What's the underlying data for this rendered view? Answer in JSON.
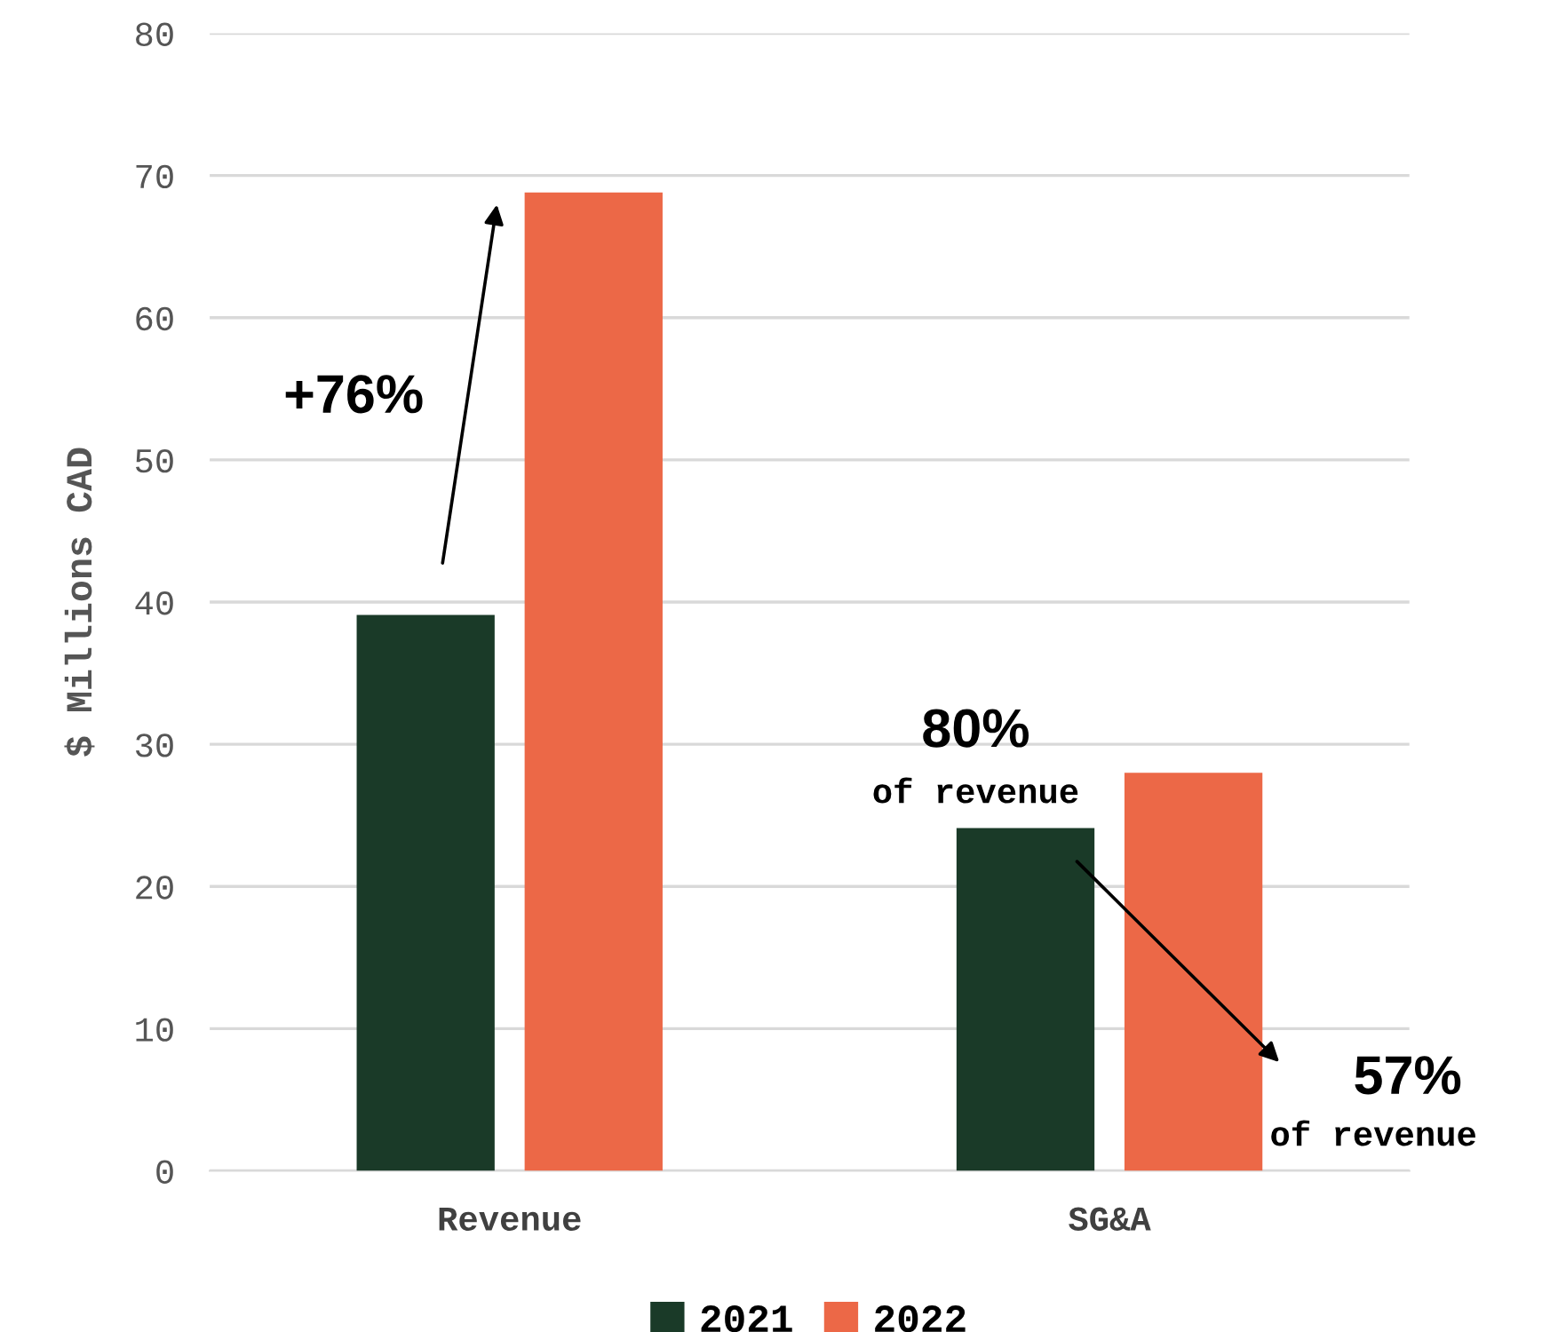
{
  "chart_data": {
    "type": "bar",
    "ylabel": "$ Millions CAD",
    "categories": [
      "Revenue",
      "SG&A"
    ],
    "series": [
      {
        "name": "2021",
        "color": "#1a3a28",
        "values": [
          39.1,
          24.1
        ]
      },
      {
        "name": "2022",
        "color": "#ec6847",
        "values": [
          68.8,
          28.0
        ]
      }
    ],
    "ylim": [
      0,
      80
    ],
    "yticks": [
      0,
      10,
      20,
      30,
      40,
      50,
      60,
      70,
      80
    ],
    "grid": "y",
    "legend": "bottom",
    "annotations": [
      "+76%",
      "80%",
      "of revenue",
      "57%",
      "of revenue"
    ]
  }
}
